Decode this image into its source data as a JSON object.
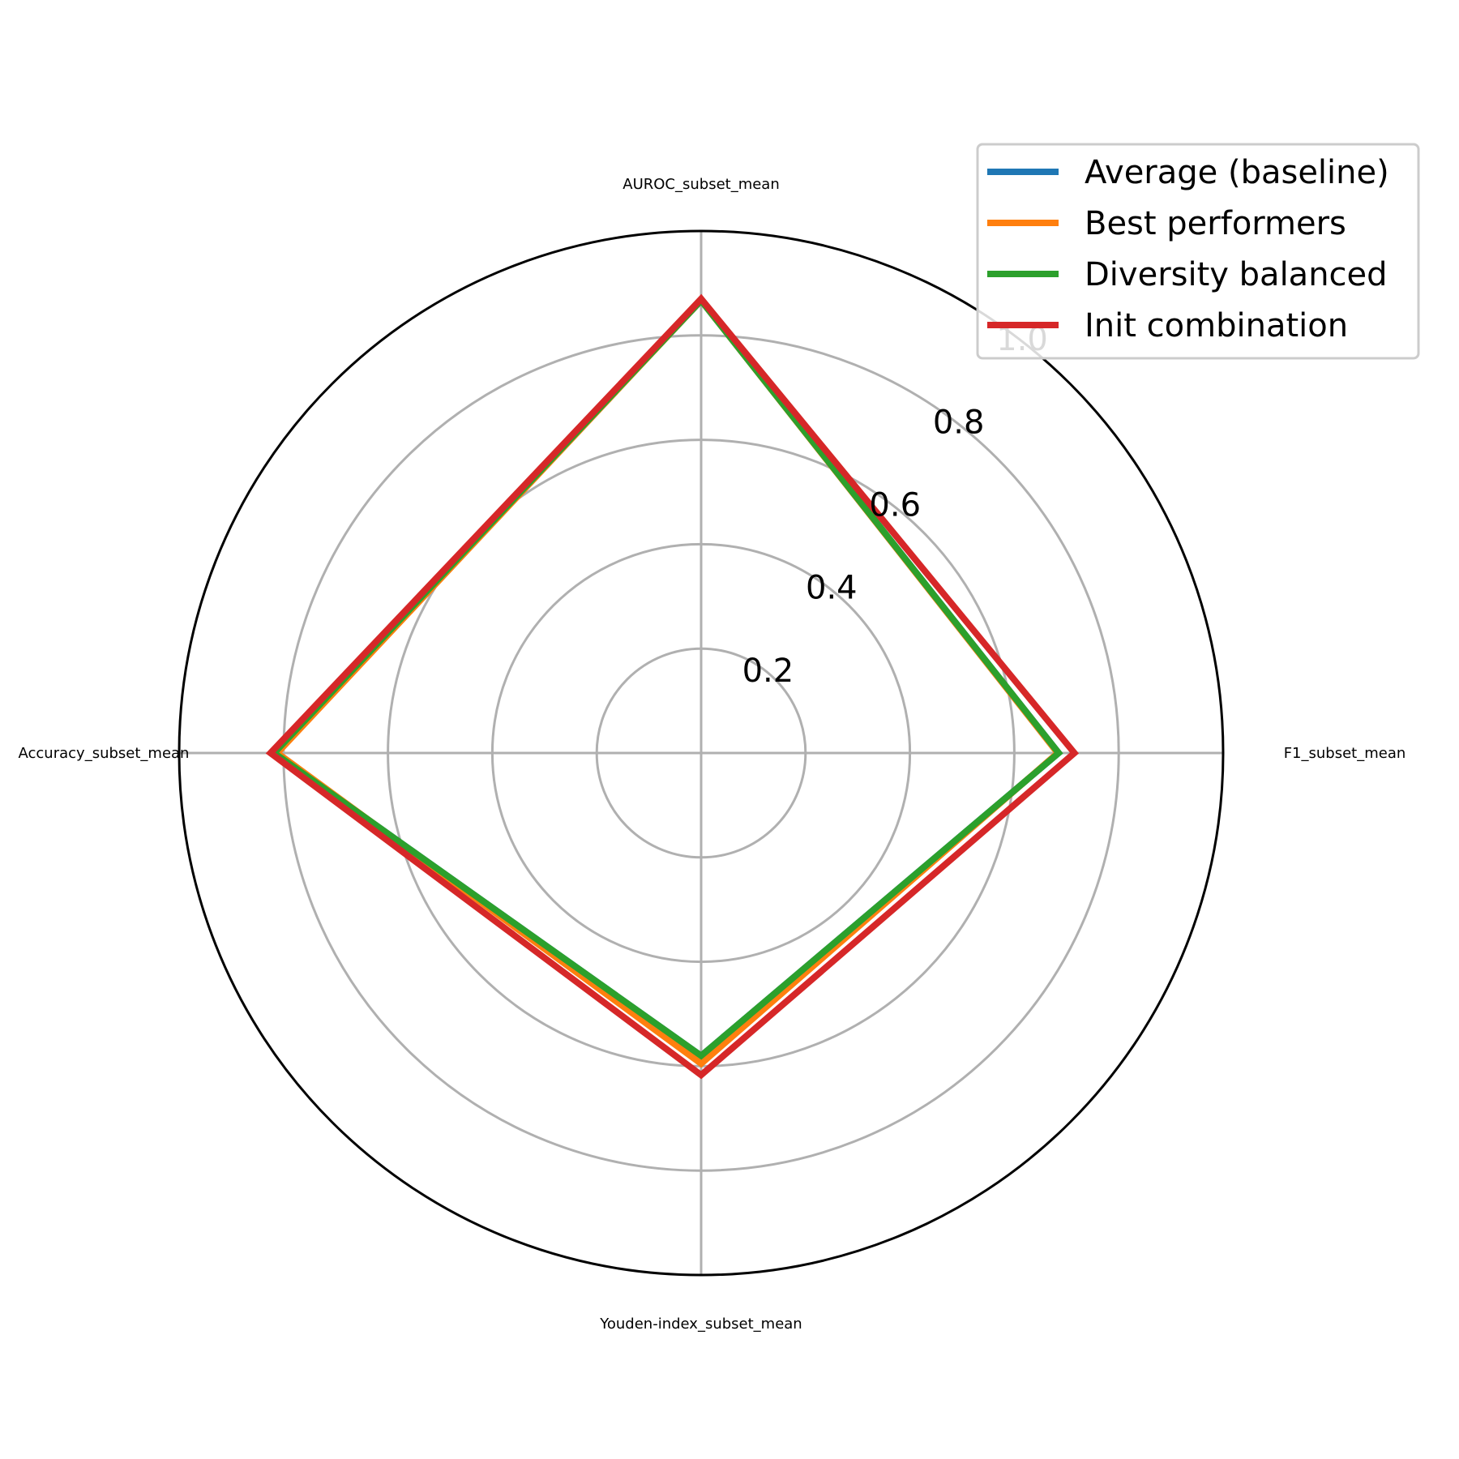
{
  "chart_data": {
    "type": "radar",
    "axes": [
      "AUROC_subset_mean",
      "F1_subset_mean",
      "Youden-index_subset_mean",
      "Accuracy_subset_mean"
    ],
    "r_ticks": [
      0.2,
      0.4,
      0.6,
      0.8,
      1.0
    ],
    "r_tick_labels": [
      "0.2",
      "0.4",
      "0.6",
      "0.8",
      "1.0"
    ],
    "rlim": [
      0,
      1.0
    ],
    "grid": true,
    "legend_position": "top-right",
    "series": [
      {
        "name": "Average (baseline)",
        "color": "#1f77b4",
        "values": [
          0.867,
          0.685,
          0.58,
          0.818
        ]
      },
      {
        "name": "Best performers",
        "color": "#ff7f0e",
        "values": [
          0.867,
          0.683,
          0.595,
          0.812
        ]
      },
      {
        "name": "Diversity balanced",
        "color": "#2ca02c",
        "values": [
          0.867,
          0.685,
          0.58,
          0.818
        ]
      },
      {
        "name": "Init combination",
        "color": "#d62728",
        "values": [
          0.87,
          0.715,
          0.617,
          0.825
        ]
      }
    ]
  }
}
